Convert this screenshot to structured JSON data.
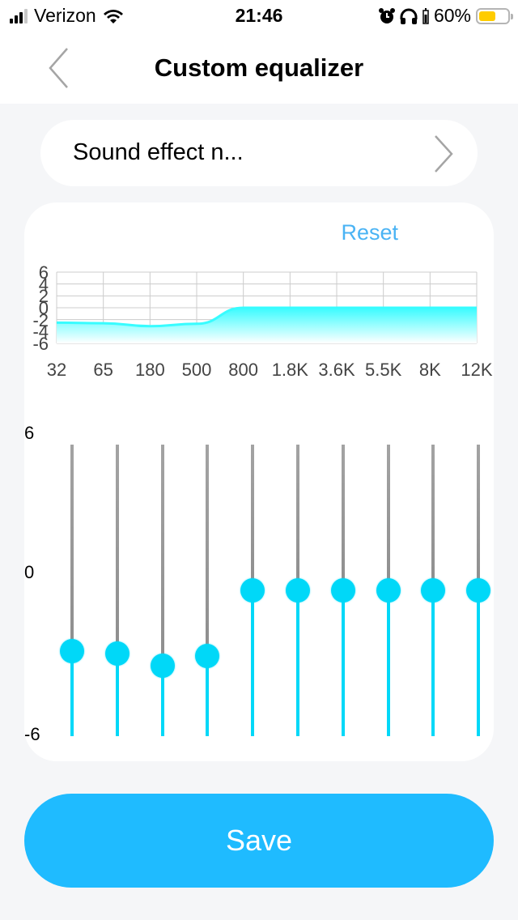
{
  "status_bar": {
    "carrier": "Verizon",
    "time": "21:46",
    "battery_percent": "60%",
    "battery_level": 0.6,
    "battery_color": "#ffcc00",
    "icons": [
      "signal-icon",
      "wifi-icon",
      "alarm-icon",
      "headphones-icon",
      "headphone-battery-icon",
      "battery-icon"
    ]
  },
  "nav": {
    "title": "Custom equalizer",
    "back_icon": "chevron-left-icon"
  },
  "preset": {
    "label": "Sound effect n...",
    "chevron_icon": "chevron-right-icon"
  },
  "eq": {
    "reset_label": "Reset",
    "scale_labels": {
      "top": "6",
      "mid": "0",
      "bottom": "-6"
    },
    "bands": [
      {
        "label": "32",
        "value": -2.5
      },
      {
        "label": "65",
        "value": -2.6
      },
      {
        "label": "180",
        "value": -3.1
      },
      {
        "label": "500",
        "value": -2.7
      },
      {
        "label": "800",
        "value": 0
      },
      {
        "label": "1.8K",
        "value": 0
      },
      {
        "label": "3.6K",
        "value": 0
      },
      {
        "label": "5.5K",
        "value": 0
      },
      {
        "label": "8K",
        "value": 0
      },
      {
        "label": "12K",
        "value": 0
      }
    ]
  },
  "save_label": "Save",
  "colors": {
    "accent": "#1fbbff",
    "link": "#4ab3f4",
    "slider_active": "#00d8f8",
    "slider_inactive": "#999999",
    "curve": "#38fcff"
  },
  "chart_data": {
    "type": "area",
    "title": "",
    "categories": [
      "32",
      "65",
      "180",
      "500",
      "800",
      "1.8K",
      "3.6K",
      "5.5K",
      "8K",
      "12K"
    ],
    "values": [
      -2.5,
      -2.6,
      -3.1,
      -2.7,
      0,
      0,
      0,
      0,
      0,
      0
    ],
    "yticks": [
      "6",
      "4",
      "2",
      "0",
      "-2",
      "-4",
      "-6"
    ],
    "ylim": [
      -6,
      6
    ],
    "xlabel": "",
    "ylabel": "",
    "grid": true
  }
}
